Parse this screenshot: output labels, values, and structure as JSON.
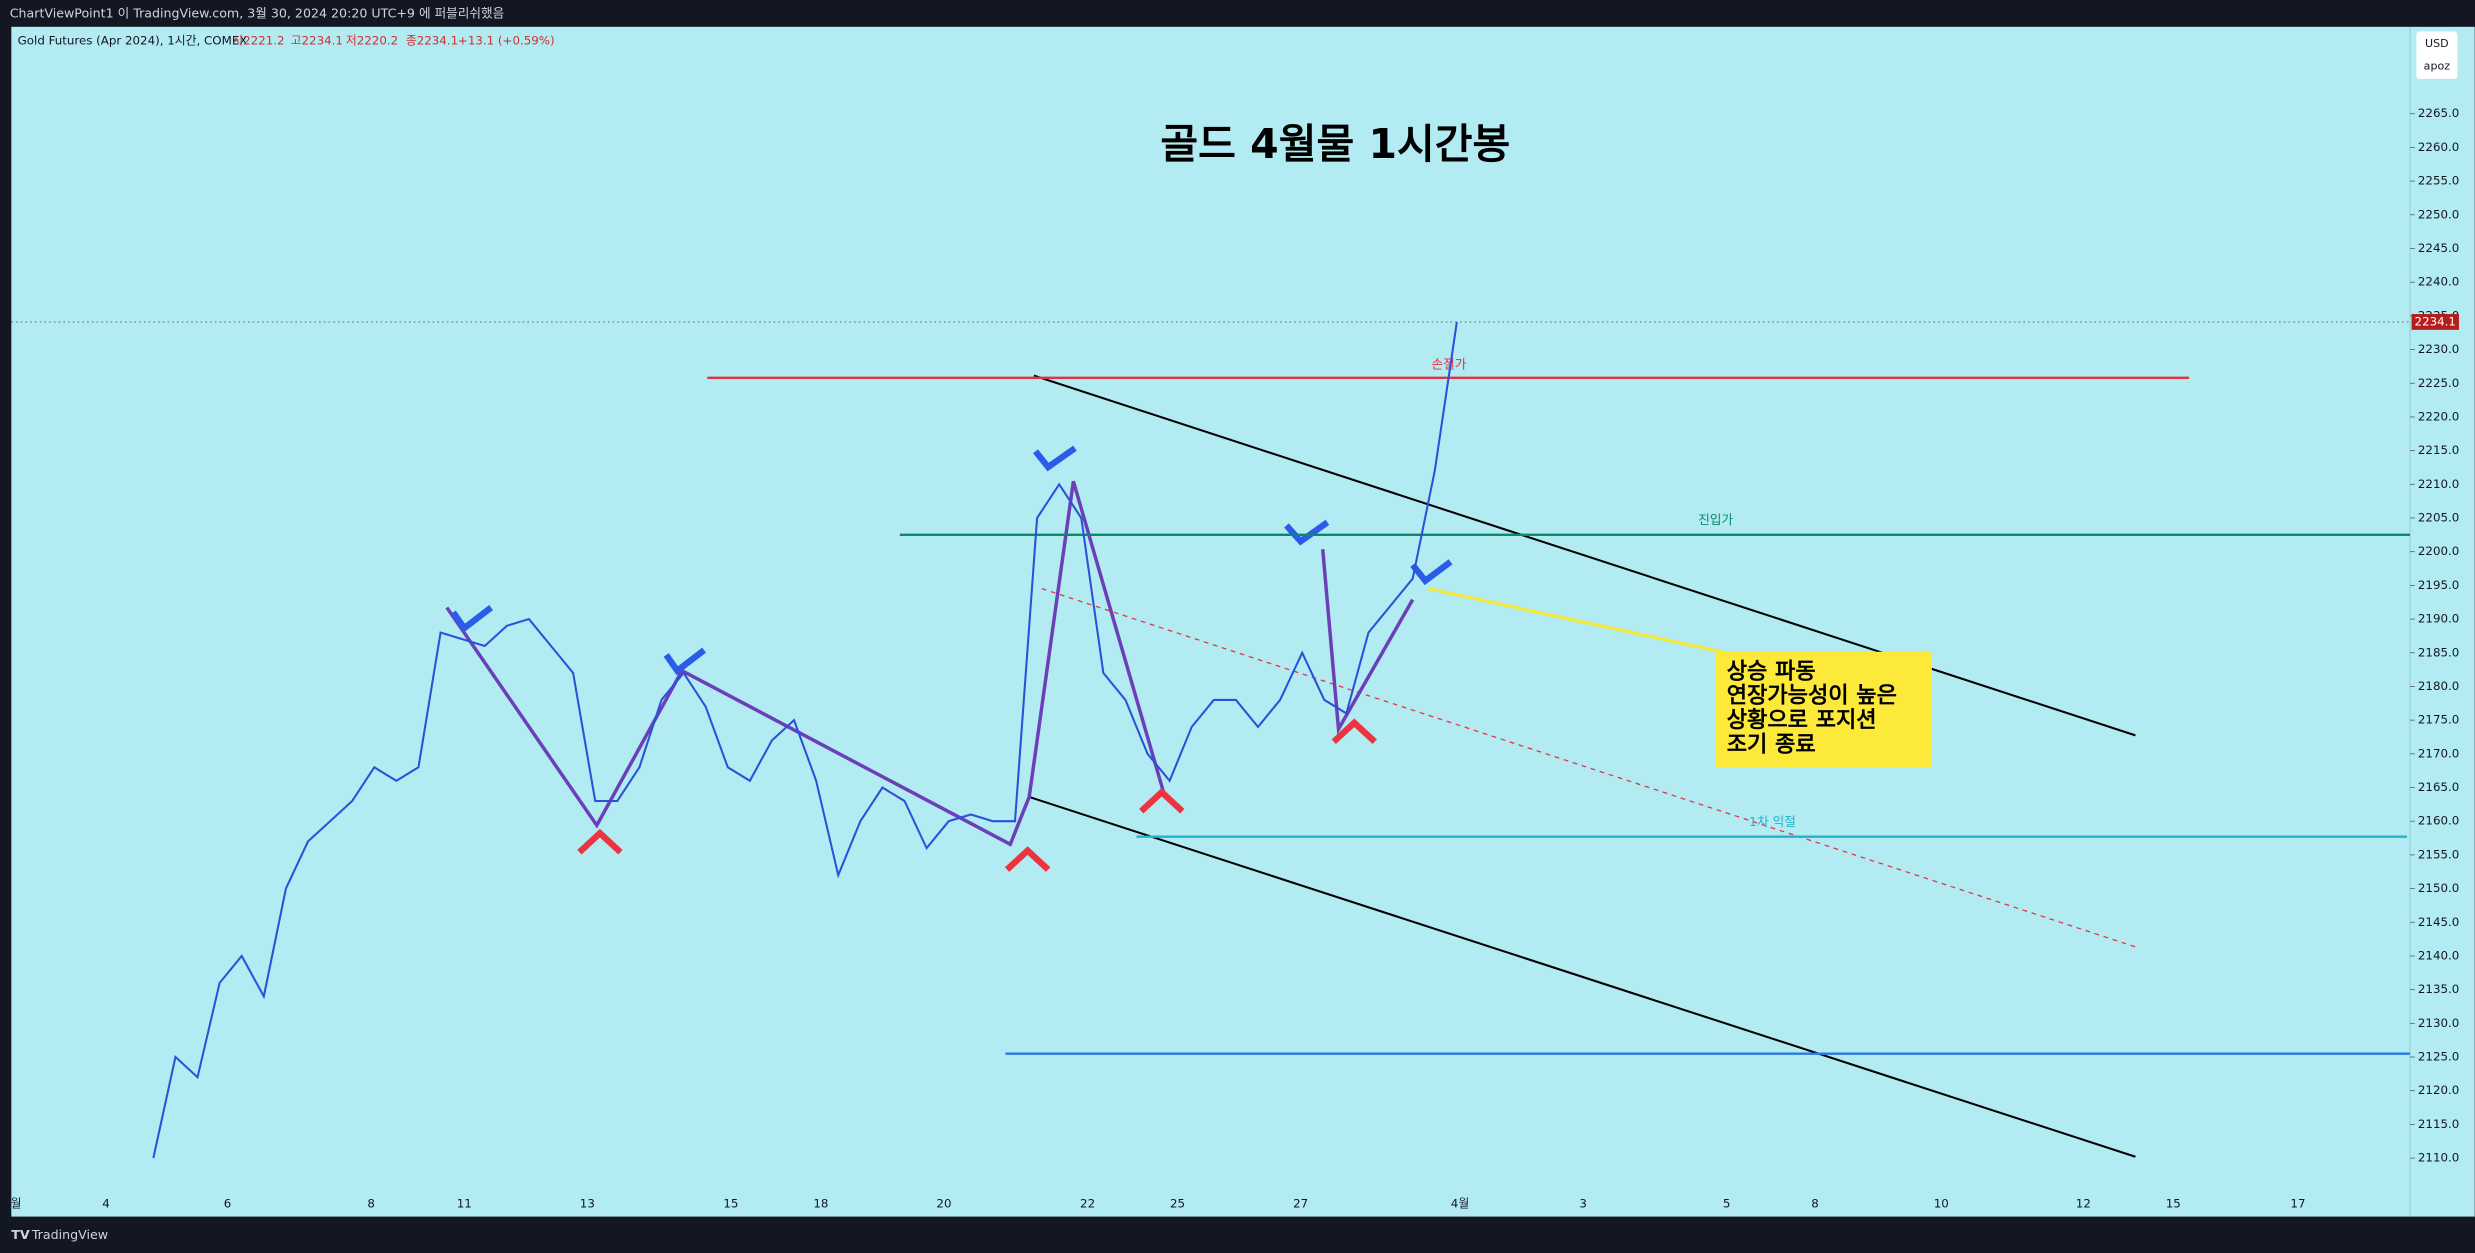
{
  "header": {
    "publish_note": "ChartViewPoint1 이 TradingView.com, 3월 30, 2024 20:20 UTC+9 에 퍼블리쉬했음"
  },
  "symbol": {
    "name": "Gold Futures (Apr 2024), 1시간, COMEX",
    "ohlc": [
      "시2221.2",
      "고2234.1",
      "저2220.2",
      "종2234.1",
      "+13.1 (+0.59%)"
    ]
  },
  "price_scale": {
    "currency": "USD",
    "user": "apoz"
  },
  "footer": {
    "brand": "TradingView"
  },
  "chart_data": {
    "type": "line",
    "title": "골드 4월물 1시간봉",
    "ylim": [
      2101.3,
      2277.9
    ],
    "yticks": [
      {
        "value": 2110,
        "label": "2110.0"
      },
      {
        "value": 2115,
        "label": "2115.0"
      },
      {
        "value": 2120,
        "label": "2120.0"
      },
      {
        "value": 2125,
        "label": "2125.0"
      },
      {
        "value": 2130,
        "label": "2130.0"
      },
      {
        "value": 2135,
        "label": "2135.0"
      },
      {
        "value": 2140,
        "label": "2140.0"
      },
      {
        "value": 2145,
        "label": "2145.0"
      },
      {
        "value": 2150,
        "label": "2150.0"
      },
      {
        "value": 2155,
        "label": "2155.0"
      },
      {
        "value": 2160,
        "label": "2160.0"
      },
      {
        "value": 2165,
        "label": "2165.0"
      },
      {
        "value": 2170,
        "label": "2170.0"
      },
      {
        "value": 2175,
        "label": "2175.0"
      },
      {
        "value": 2180,
        "label": "2180.0"
      },
      {
        "value": 2185,
        "label": "2185.0"
      },
      {
        "value": 2190,
        "label": "2190.0"
      },
      {
        "value": 2195,
        "label": "2195.0"
      },
      {
        "value": 2200,
        "label": "2200.0"
      },
      {
        "value": 2205,
        "label": "2205.0"
      },
      {
        "value": 2210,
        "label": "2210.0"
      },
      {
        "value": 2215,
        "label": "2215.0"
      },
      {
        "value": 2220,
        "label": "2220.0"
      },
      {
        "value": 2225,
        "label": "2225.0"
      },
      {
        "value": 2230,
        "label": "2230.0"
      },
      {
        "value": 2235,
        "label": "2235.0"
      },
      {
        "value": 2240,
        "label": "2240.0"
      },
      {
        "value": 2245,
        "label": "2245.0"
      },
      {
        "value": 2250,
        "label": "2250.0"
      },
      {
        "value": 2255,
        "label": "2255.0"
      },
      {
        "value": 2260,
        "label": "2260.0"
      },
      {
        "value": 2265,
        "label": "2265.0"
      }
    ],
    "x_labels": [
      "월",
      "4",
      "6",
      "8",
      "11",
      "13",
      "15",
      "18",
      "20",
      "22",
      "25",
      "27",
      "4월",
      "3",
      "5",
      "8",
      "10",
      "12",
      "15",
      "17"
    ],
    "last_price": {
      "value": 2234.1,
      "label": "2234.1"
    },
    "series": [
      {
        "name": "Gold Futures",
        "color": "#2c50d8",
        "values": [
          2110,
          2125,
          2122,
          2136,
          2140,
          2134,
          2150,
          2157,
          2160,
          2163,
          2168,
          2166,
          2168,
          2188,
          2187,
          2186,
          2189,
          2190,
          2186,
          2182,
          2163,
          2163,
          2168,
          2178,
          2182,
          2177,
          2168,
          2166,
          2172,
          2175,
          2166,
          2152,
          2160,
          2165,
          2163,
          2156,
          2160,
          2161,
          2160,
          2160,
          2205,
          2210,
          2205,
          2182,
          2178,
          2170,
          2166,
          2174,
          2178,
          2178,
          2174,
          2178,
          2185,
          2178,
          2176,
          2188,
          2192,
          2196,
          2212,
          2234.1
        ]
      }
    ],
    "levels": [
      {
        "name": "손절가",
        "value": 2225.8,
        "color": "#e5323f"
      },
      {
        "name": "진입가",
        "value": 2202.5,
        "color": "#0a8a6a"
      },
      {
        "name": "1차 익절",
        "value": 2157.7,
        "color": "#1fb5c9"
      },
      {
        "value": 2125.5,
        "color": "#2a7be0"
      }
    ],
    "annotation": {
      "lines": [
        "상승 파동",
        "연장가능성이 높은",
        "상황으로 포지션",
        "조기 종료"
      ]
    }
  }
}
